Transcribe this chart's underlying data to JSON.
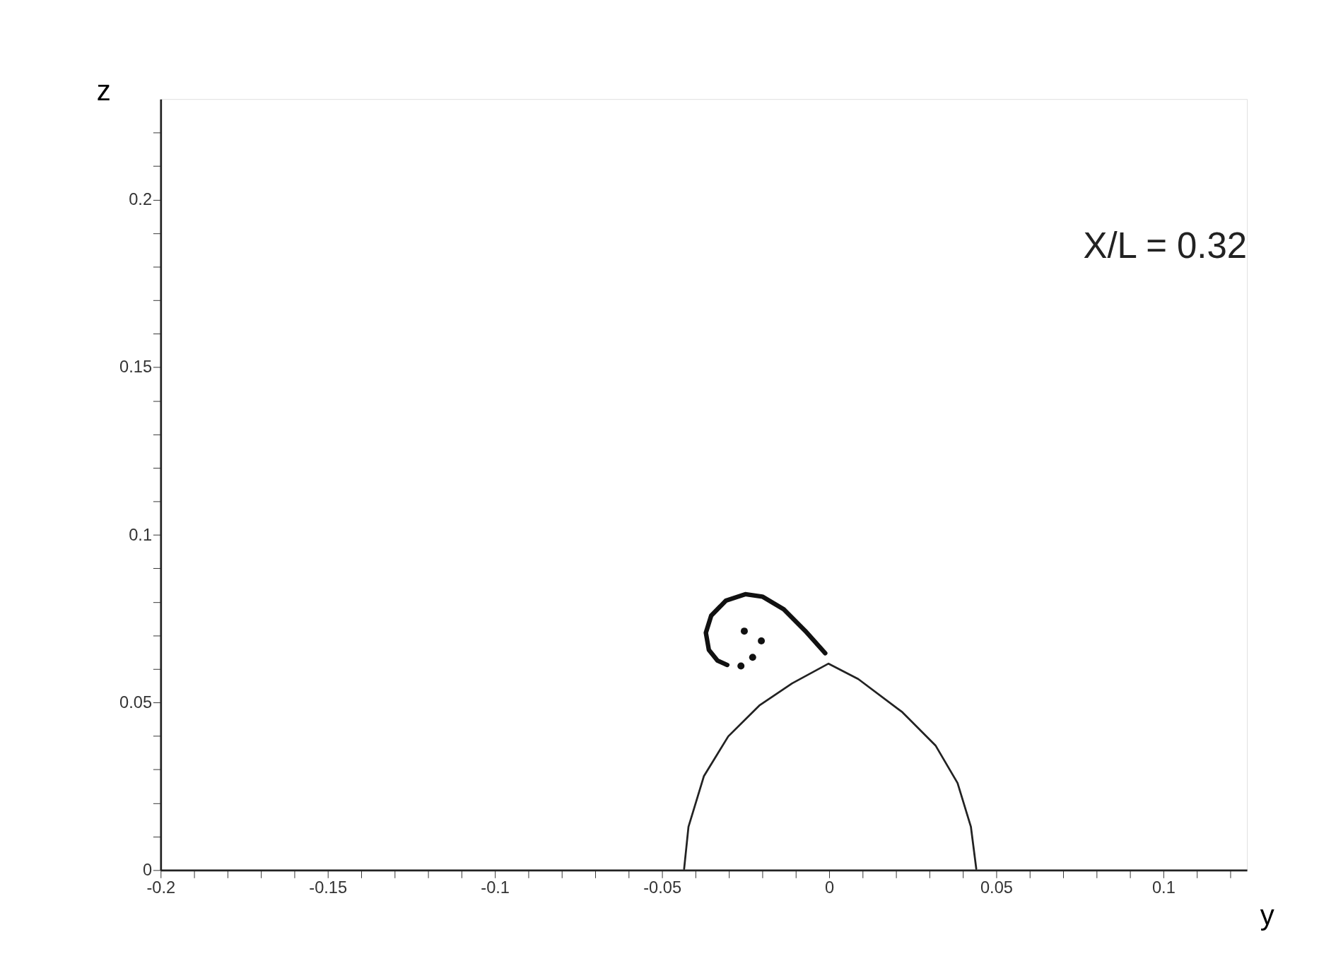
{
  "chart_data": {
    "type": "line",
    "xlabel": "y",
    "ylabel": "z",
    "annotations": [
      "X/L = 0.32"
    ],
    "xlim": [
      -0.2,
      0.125
    ],
    "ylim": [
      0,
      0.23
    ],
    "xticks": [
      -0.2,
      {
        "value": -0.19,
        "label": null
      },
      {
        "value": -0.18,
        "label": null
      },
      {
        "value": -0.17,
        "label": null
      },
      {
        "value": -0.16,
        "label": null
      },
      -0.15,
      {
        "value": -0.14,
        "label": null
      },
      {
        "value": -0.13,
        "label": null
      },
      {
        "value": -0.12,
        "label": null
      },
      {
        "value": -0.11,
        "label": null
      },
      -0.1,
      {
        "value": -0.09,
        "label": null
      },
      {
        "value": -0.08,
        "label": null
      },
      {
        "value": -0.07,
        "label": null
      },
      {
        "value": -0.06,
        "label": null
      },
      -0.05,
      {
        "value": -0.04,
        "label": null
      },
      {
        "value": -0.03,
        "label": null
      },
      {
        "value": -0.02,
        "label": null
      },
      {
        "value": -0.01,
        "label": null
      },
      0,
      {
        "value": 0.01,
        "label": null
      },
      {
        "value": 0.02,
        "label": null
      },
      {
        "value": 0.03,
        "label": null
      },
      {
        "value": 0.04,
        "label": null
      },
      0.05,
      {
        "value": 0.06,
        "label": null
      },
      {
        "value": 0.07,
        "label": null
      },
      {
        "value": 0.08,
        "label": null
      },
      {
        "value": 0.09,
        "label": null
      },
      0.1,
      {
        "value": 0.11,
        "label": null
      },
      {
        "value": 0.12,
        "label": null
      }
    ],
    "yticks": [
      0,
      {
        "value": 0.01,
        "label": null
      },
      {
        "value": 0.02,
        "label": null
      },
      {
        "value": 0.03,
        "label": null
      },
      {
        "value": 0.04,
        "label": null
      },
      0.05,
      {
        "value": 0.06,
        "label": null
      },
      {
        "value": 0.07,
        "label": null
      },
      {
        "value": 0.08,
        "label": null
      },
      {
        "value": 0.09,
        "label": null
      },
      0.1,
      {
        "value": 0.11,
        "label": null
      },
      {
        "value": 0.12,
        "label": null
      },
      {
        "value": 0.13,
        "label": null
      },
      {
        "value": 0.14,
        "label": null
      },
      0.15,
      {
        "value": 0.16,
        "label": null
      },
      {
        "value": 0.17,
        "label": null
      },
      {
        "value": 0.18,
        "label": null
      },
      {
        "value": 0.19,
        "label": null
      },
      0.2,
      {
        "value": 0.21,
        "label": null
      },
      {
        "value": 0.22,
        "label": null
      }
    ],
    "grid": false,
    "legend": false,
    "series": [
      {
        "color": "#222222",
        "marker": "none",
        "x": [
          -0.0434,
          -0.0421,
          -0.0375,
          -0.0302,
          -0.0209,
          -0.0111,
          -0.0002,
          0.0087,
          0.0219,
          0.0318,
          0.0384,
          0.0424,
          0.044
        ],
        "values": [
          0.0004,
          0.0129,
          0.028,
          0.0399,
          0.0491,
          0.0557,
          0.0616,
          0.057,
          0.0471,
          0.0372,
          0.026,
          0.0129,
          0.0004
        ]
      },
      {
        "color": "#111111",
        "marker": "none",
        "x": [
          -0.0012,
          -0.0072,
          -0.0136,
          -0.02,
          -0.0251,
          -0.0309,
          -0.0353,
          -0.0369,
          -0.036,
          -0.0334,
          -0.0305
        ],
        "values": [
          0.0647,
          0.0714,
          0.0778,
          0.0816,
          0.0823,
          0.0804,
          0.0759,
          0.0708,
          0.0657,
          0.0625,
          0.0612
        ]
      },
      {
        "type": "scatter",
        "color": "#111111",
        "marker": "circle",
        "x": [
          -0.0264,
          -0.0229,
          -0.0203,
          -0.0254
        ],
        "values": [
          0.0609,
          0.0635,
          0.0684,
          0.0713
        ]
      }
    ]
  }
}
